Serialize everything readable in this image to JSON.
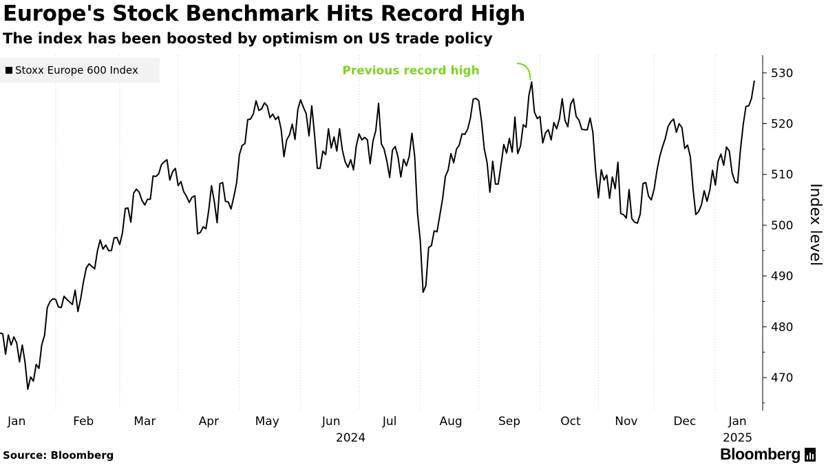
{
  "header": {
    "title": "Europe's Stock Benchmark Hits Record High",
    "subtitle": "The index has been boosted by optimism on US trade policy"
  },
  "footer": {
    "source": "Source: Bloomberg",
    "brand": "Bloomberg"
  },
  "chart_data": {
    "type": "line",
    "series": [
      {
        "name": "Stoxx Europe 600 Index",
        "color": "#000000",
        "points": [
          [
            0.0,
            478.8
          ],
          [
            0.25,
            478.6
          ],
          [
            0.5,
            474.6
          ],
          [
            0.75,
            478.4
          ],
          [
            1.0,
            476.4
          ],
          [
            1.25,
            478.0
          ],
          [
            1.5,
            476.8
          ],
          [
            1.75,
            473.1
          ],
          [
            2.0,
            476.4
          ],
          [
            2.25,
            473.0
          ],
          [
            2.5,
            467.7
          ],
          [
            2.75,
            470.1
          ],
          [
            3.0,
            469.3
          ],
          [
            3.25,
            472.6
          ],
          [
            3.5,
            471.8
          ],
          [
            3.75,
            476.5
          ],
          [
            4.0,
            478.3
          ],
          [
            4.25,
            483.8
          ],
          [
            4.5,
            485.0
          ],
          [
            4.75,
            485.5
          ],
          [
            5.0,
            485.4
          ],
          [
            5.25,
            483.9
          ],
          [
            5.5,
            483.8
          ],
          [
            5.75,
            486.0
          ],
          [
            6.0,
            485.4
          ],
          [
            6.25,
            484.9
          ],
          [
            6.5,
            484.4
          ],
          [
            6.75,
            487.2
          ],
          [
            7.0,
            483.0
          ],
          [
            7.25,
            485.6
          ],
          [
            7.5,
            488.9
          ],
          [
            7.75,
            491.6
          ],
          [
            8.0,
            492.4
          ],
          [
            8.25,
            491.9
          ],
          [
            8.5,
            491.4
          ],
          [
            8.75,
            494.9
          ],
          [
            9.0,
            497.1
          ],
          [
            9.25,
            495.3
          ],
          [
            9.5,
            496.1
          ],
          [
            9.75,
            495.0
          ],
          [
            10.0,
            495.0
          ],
          [
            10.25,
            497.5
          ],
          [
            10.5,
            497.6
          ],
          [
            10.75,
            496.2
          ],
          [
            11.0,
            498.5
          ],
          [
            11.25,
            503.3
          ],
          [
            11.5,
            503.4
          ],
          [
            11.75,
            500.6
          ],
          [
            12.0,
            506.3
          ],
          [
            12.25,
            507.1
          ],
          [
            12.5,
            506.5
          ],
          [
            12.75,
            504.9
          ],
          [
            13.0,
            504.0
          ],
          [
            13.25,
            505.1
          ],
          [
            13.5,
            505.1
          ],
          [
            13.75,
            509.7
          ],
          [
            14.0,
            509.6
          ],
          [
            14.25,
            510.1
          ],
          [
            14.5,
            511.9
          ],
          [
            14.75,
            512.5
          ],
          [
            15.0,
            512.9
          ],
          [
            15.25,
            508.9
          ],
          [
            15.5,
            510.5
          ],
          [
            15.75,
            511.2
          ],
          [
            16.0,
            507.8
          ],
          [
            16.25,
            508.6
          ],
          [
            16.5,
            506.6
          ],
          [
            16.75,
            505.7
          ],
          [
            17.0,
            504.5
          ],
          [
            17.25,
            505.5
          ],
          [
            17.5,
            505.8
          ],
          [
            17.75,
            498.3
          ],
          [
            18.0,
            498.6
          ],
          [
            18.25,
            499.7
          ],
          [
            18.5,
            499.3
          ],
          [
            18.75,
            503.0
          ],
          [
            19.0,
            507.8
          ],
          [
            19.25,
            504.6
          ],
          [
            19.5,
            500.5
          ],
          [
            19.75,
            508.2
          ],
          [
            20.0,
            508.4
          ],
          [
            20.25,
            504.7
          ],
          [
            20.5,
            504.6
          ],
          [
            20.75,
            503.2
          ],
          [
            21.0,
            505.6
          ],
          [
            21.25,
            508.3
          ],
          [
            21.5,
            513.9
          ],
          [
            21.75,
            515.7
          ],
          [
            22.0,
            516.1
          ],
          [
            22.25,
            520.8
          ],
          [
            22.5,
            520.9
          ],
          [
            22.75,
            521.9
          ],
          [
            23.0,
            524.5
          ],
          [
            23.25,
            522.6
          ],
          [
            23.5,
            522.9
          ],
          [
            23.75,
            524.1
          ],
          [
            24.0,
            523.5
          ],
          [
            24.25,
            521.2
          ],
          [
            24.5,
            521.9
          ],
          [
            24.75,
            520.8
          ],
          [
            25.0,
            521.4
          ],
          [
            25.25,
            518.9
          ],
          [
            25.5,
            513.5
          ],
          [
            25.75,
            516.8
          ],
          [
            26.0,
            517.8
          ],
          [
            26.25,
            519.9
          ],
          [
            26.5,
            516.9
          ],
          [
            26.75,
            522.8
          ],
          [
            27.0,
            524.7
          ],
          [
            27.25,
            523.2
          ],
          [
            27.5,
            522.0
          ],
          [
            27.75,
            517.6
          ],
          [
            28.0,
            523.5
          ],
          [
            28.25,
            518.0
          ],
          [
            28.5,
            511.2
          ],
          [
            28.75,
            511.2
          ],
          [
            29.0,
            514.6
          ],
          [
            29.25,
            513.9
          ],
          [
            29.5,
            519.0
          ],
          [
            29.75,
            515.2
          ],
          [
            30.0,
            517.4
          ],
          [
            30.25,
            514.6
          ],
          [
            30.5,
            519.0
          ],
          [
            30.75,
            514.8
          ],
          [
            31.0,
            512.5
          ],
          [
            31.25,
            511.4
          ],
          [
            31.5,
            512.9
          ],
          [
            31.75,
            510.9
          ],
          [
            32.0,
            515.6
          ],
          [
            32.25,
            518.0
          ],
          [
            32.5,
            516.8
          ],
          [
            32.75,
            517.3
          ],
          [
            33.0,
            516.8
          ],
          [
            33.25,
            512.1
          ],
          [
            33.5,
            516.6
          ],
          [
            33.75,
            518.6
          ],
          [
            34.0,
            524.0
          ],
          [
            34.25,
            516.0
          ],
          [
            34.5,
            515.0
          ],
          [
            34.75,
            512.6
          ],
          [
            35.0,
            509.4
          ],
          [
            35.25,
            514.8
          ],
          [
            35.5,
            515.5
          ],
          [
            35.75,
            513.4
          ],
          [
            36.0,
            509.5
          ],
          [
            36.25,
            513.0
          ],
          [
            36.5,
            511.7
          ],
          [
            36.75,
            513.5
          ],
          [
            37.0,
            518.1
          ],
          [
            37.25,
            513.5
          ],
          [
            37.5,
            502.3
          ],
          [
            37.75,
            496.9
          ],
          [
            38.0,
            486.8
          ],
          [
            38.25,
            488.1
          ],
          [
            38.5,
            495.6
          ],
          [
            38.75,
            496.0
          ],
          [
            39.0,
            498.9
          ],
          [
            39.25,
            498.7
          ],
          [
            39.5,
            501.9
          ],
          [
            39.75,
            505.2
          ],
          [
            40.0,
            509.6
          ],
          [
            40.25,
            510.9
          ],
          [
            40.5,
            514.1
          ],
          [
            40.75,
            512.3
          ],
          [
            41.0,
            515.0
          ],
          [
            41.25,
            515.8
          ],
          [
            41.5,
            518.0
          ],
          [
            41.75,
            517.9
          ],
          [
            42.0,
            518.9
          ],
          [
            42.25,
            521.1
          ],
          [
            42.5,
            524.8
          ],
          [
            42.75,
            525.0
          ],
          [
            43.0,
            524.5
          ],
          [
            43.25,
            520.4
          ],
          [
            43.5,
            515.0
          ],
          [
            43.75,
            512.3
          ],
          [
            44.0,
            506.5
          ],
          [
            44.25,
            512.6
          ],
          [
            44.5,
            508.1
          ],
          [
            44.75,
            508.1
          ],
          [
            45.0,
            511.9
          ],
          [
            45.25,
            515.9
          ],
          [
            45.5,
            514.2
          ],
          [
            45.75,
            517.1
          ],
          [
            46.0,
            514.4
          ],
          [
            46.25,
            521.3
          ],
          [
            46.5,
            514.1
          ],
          [
            46.75,
            515.6
          ],
          [
            47.0,
            519.8
          ],
          [
            47.25,
            519.3
          ],
          [
            47.5,
            525.5
          ],
          [
            47.75,
            528.2
          ],
          [
            48.0,
            522.3
          ],
          [
            48.25,
            521.0
          ],
          [
            48.5,
            521.4
          ],
          [
            48.75,
            516.2
          ],
          [
            49.0,
            518.2
          ],
          [
            49.25,
            518.8
          ],
          [
            49.5,
            516.8
          ],
          [
            49.75,
            520.2
          ],
          [
            50.0,
            519.0
          ],
          [
            50.25,
            521.0
          ],
          [
            50.5,
            524.9
          ],
          [
            50.75,
            520.6
          ],
          [
            51.0,
            519.4
          ],
          [
            51.25,
            523.8
          ],
          [
            51.5,
            524.9
          ],
          [
            51.75,
            521.4
          ],
          [
            52.0,
            520.7
          ],
          [
            52.25,
            518.9
          ],
          [
            52.5,
            518.8
          ],
          [
            52.75,
            518.8
          ],
          [
            53.0,
            521.1
          ],
          [
            53.25,
            518.3
          ],
          [
            53.5,
            510.6
          ],
          [
            53.75,
            505.4
          ],
          [
            54.0,
            510.9
          ],
          [
            54.25,
            508.9
          ],
          [
            54.5,
            509.9
          ],
          [
            54.75,
            505.3
          ],
          [
            55.0,
            509.5
          ],
          [
            55.25,
            507.2
          ],
          [
            55.5,
            512.4
          ],
          [
            55.75,
            502.3
          ],
          [
            56.0,
            502.1
          ],
          [
            56.25,
            501.4
          ],
          [
            56.5,
            507.0
          ],
          [
            56.75,
            501.3
          ],
          [
            57.0,
            500.6
          ],
          [
            57.25,
            500.4
          ],
          [
            57.5,
            502.2
          ],
          [
            57.75,
            508.2
          ],
          [
            58.0,
            508.4
          ],
          [
            58.25,
            505.7
          ],
          [
            58.5,
            505.0
          ],
          [
            58.75,
            507.1
          ],
          [
            59.0,
            510.7
          ],
          [
            59.25,
            513.5
          ],
          [
            59.5,
            515.4
          ],
          [
            59.75,
            517.1
          ],
          [
            60.0,
            519.4
          ],
          [
            60.25,
            520.4
          ],
          [
            60.5,
            520.9
          ],
          [
            60.75,
            518.3
          ],
          [
            61.0,
            520.0
          ],
          [
            61.25,
            519.2
          ],
          [
            61.5,
            515.1
          ],
          [
            61.75,
            515.8
          ],
          [
            62.0,
            513.5
          ],
          [
            62.25,
            507.1
          ],
          [
            62.5,
            502.1
          ],
          [
            62.75,
            502.7
          ],
          [
            63.0,
            504.0
          ],
          [
            63.25,
            506.8
          ],
          [
            63.5,
            504.7
          ],
          [
            63.75,
            506.9
          ],
          [
            64.0,
            510.8
          ],
          [
            64.25,
            507.9
          ],
          [
            64.5,
            512.6
          ],
          [
            64.75,
            514.0
          ],
          [
            65.0,
            511.8
          ],
          [
            65.25,
            515.4
          ],
          [
            65.5,
            514.6
          ],
          [
            65.75,
            510.4
          ],
          [
            66.0,
            508.6
          ],
          [
            66.25,
            508.3
          ],
          [
            66.5,
            514.7
          ],
          [
            66.75,
            519.8
          ],
          [
            67.0,
            523.4
          ],
          [
            67.25,
            523.5
          ],
          [
            67.5,
            525.0
          ],
          [
            67.75,
            528.5
          ]
        ]
      }
    ],
    "x_tick_labels": [
      "Jan",
      "Feb",
      "Mar",
      "Apr",
      "May",
      "Jun",
      "Jul",
      "Aug",
      "Sep",
      "Oct",
      "Nov",
      "Dec",
      "Jan"
    ],
    "x_group_labels": [
      "2024",
      "2025"
    ],
    "y_ticks": [
      470,
      480,
      490,
      500,
      510,
      520,
      530
    ],
    "y_tick_labels": [
      "470",
      "480",
      "490",
      "500",
      "510",
      "520",
      "530"
    ],
    "ylim": [
      463.5,
      533.5
    ],
    "xlim": [
      0,
      68.5
    ],
    "ylabel": "Index level",
    "y_axis_side": "right",
    "legend": "top-left",
    "grid": "vertical dotted",
    "annotation": {
      "text": "Previous record high",
      "color": "#7ed321",
      "target_value": 528.2
    }
  }
}
